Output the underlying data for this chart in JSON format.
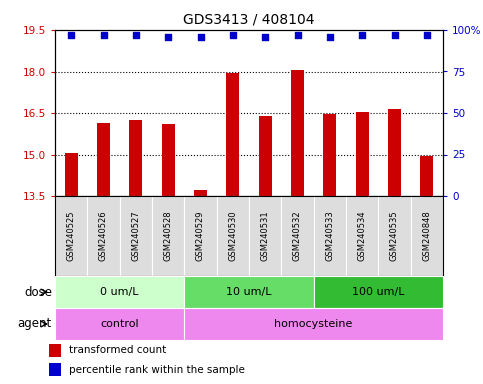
{
  "title": "GDS3413 / 408104",
  "samples": [
    "GSM240525",
    "GSM240526",
    "GSM240527",
    "GSM240528",
    "GSM240529",
    "GSM240530",
    "GSM240531",
    "GSM240532",
    "GSM240533",
    "GSM240534",
    "GSM240535",
    "GSM240848"
  ],
  "bar_values": [
    15.05,
    16.15,
    16.25,
    16.1,
    13.7,
    17.95,
    16.4,
    18.05,
    16.45,
    16.55,
    16.65,
    14.95
  ],
  "percentile_values": [
    97,
    97,
    97,
    96,
    96,
    97,
    96,
    97,
    96,
    97,
    97,
    97
  ],
  "bar_color": "#cc0000",
  "percentile_color": "#0000cc",
  "ylim_left": [
    13.5,
    19.5
  ],
  "ylim_right": [
    0,
    100
  ],
  "yticks_left": [
    13.5,
    15.0,
    16.5,
    18.0,
    19.5
  ],
  "yticks_right": [
    0,
    25,
    50,
    75,
    100
  ],
  "ytick_labels_right": [
    "0",
    "25",
    "50",
    "75",
    "100%"
  ],
  "gridlines": [
    15.0,
    16.5,
    18.0
  ],
  "dose_groups": [
    {
      "label": "0 um/L",
      "start": 0,
      "end": 4,
      "color": "#ccffcc"
    },
    {
      "label": "10 um/L",
      "start": 4,
      "end": 8,
      "color": "#66dd66"
    },
    {
      "label": "100 um/L",
      "start": 8,
      "end": 12,
      "color": "#33bb33"
    }
  ],
  "agent_groups": [
    {
      "label": "control",
      "start": 0,
      "end": 4,
      "color": "#ee88ee"
    },
    {
      "label": "homocysteine",
      "start": 4,
      "end": 12,
      "color": "#ee88ee"
    }
  ],
  "dose_label": "dose",
  "agent_label": "agent",
  "legend_items": [
    {
      "color": "#cc0000",
      "label": "transformed count"
    },
    {
      "color": "#0000cc",
      "label": "percentile rank within the sample"
    }
  ],
  "background_color": "#ffffff",
  "plot_bg_color": "#ffffff",
  "sample_bg_color": "#dddddd",
  "bar_width": 0.4
}
